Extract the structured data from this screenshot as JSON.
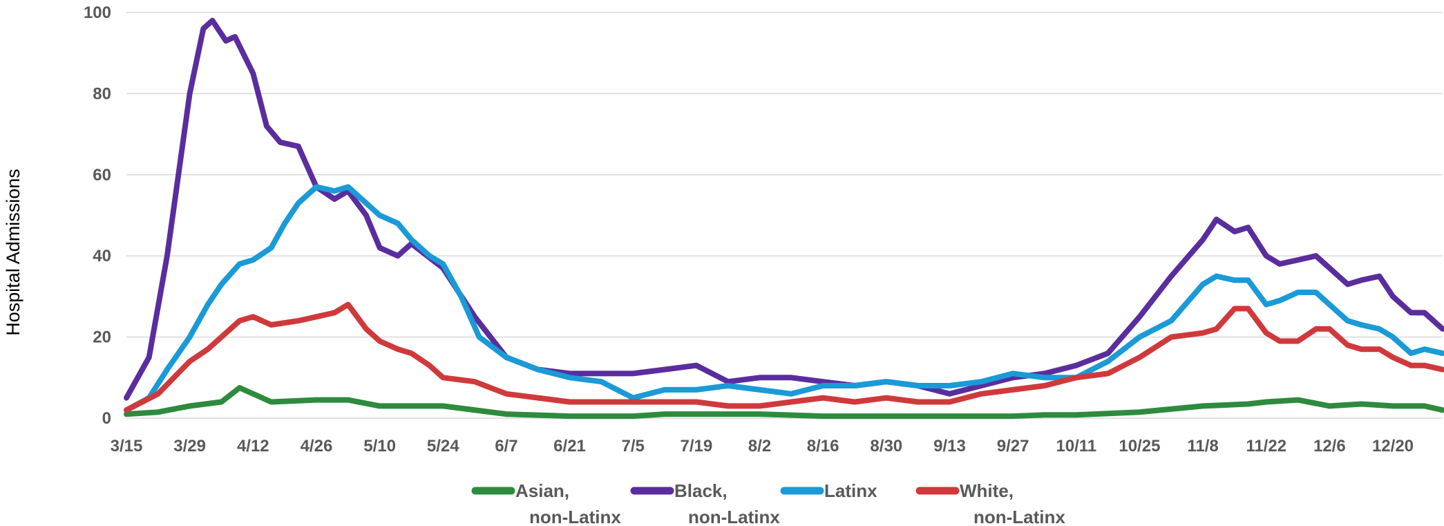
{
  "chart_data": {
    "type": "line",
    "title": "",
    "xlabel": "",
    "ylabel": "Hospital Admissions",
    "ylim": [
      0,
      100
    ],
    "yticks": [
      "0",
      "20",
      "40",
      "60",
      "80",
      "100"
    ],
    "x_tick_labels": [
      "3/15",
      "3/29",
      "4/12",
      "4/26",
      "5/10",
      "5/24",
      "6/7",
      "6/21",
      "7/5",
      "7/19",
      "8/2",
      "8/16",
      "8/30",
      "9/13",
      "9/27",
      "10/11",
      "10/25",
      "11/8",
      "11/22",
      "12/6",
      "12/20"
    ],
    "x_range": [
      "3/15",
      "12/31"
    ],
    "grid": "horizontal",
    "legend_position": "bottom",
    "series": [
      {
        "name": "Asian, non-Latinx",
        "legend_lines": [
          "Asian,",
          "non-Latinx"
        ],
        "color": "#2e8b3e",
        "points": [
          [
            "3/15",
            1
          ],
          [
            "3/22",
            1.5
          ],
          [
            "3/29",
            3
          ],
          [
            "4/5",
            4
          ],
          [
            "4/9",
            7.5
          ],
          [
            "4/16",
            4
          ],
          [
            "4/26",
            4.5
          ],
          [
            "5/3",
            4.5
          ],
          [
            "5/10",
            3
          ],
          [
            "5/24",
            3
          ],
          [
            "6/7",
            1
          ],
          [
            "6/21",
            0.5
          ],
          [
            "7/5",
            0.5
          ],
          [
            "7/12",
            1
          ],
          [
            "7/19",
            1
          ],
          [
            "8/2",
            1
          ],
          [
            "8/16",
            0.5
          ],
          [
            "9/13",
            0.5
          ],
          [
            "9/27",
            0.5
          ],
          [
            "10/4",
            0.8
          ],
          [
            "10/11",
            0.8
          ],
          [
            "10/25",
            1.5
          ],
          [
            "11/8",
            3
          ],
          [
            "11/18",
            3.5
          ],
          [
            "11/22",
            4
          ],
          [
            "11/29",
            4.5
          ],
          [
            "12/6",
            3
          ],
          [
            "12/13",
            3.5
          ],
          [
            "12/20",
            3
          ],
          [
            "12/27",
            3
          ],
          [
            "12/31",
            2
          ]
        ]
      },
      {
        "name": "Black, non-Latinx",
        "legend_lines": [
          "Black,",
          "non-Latinx"
        ],
        "color": "#5a2d9e",
        "points": [
          [
            "3/15",
            5
          ],
          [
            "3/20",
            15
          ],
          [
            "3/24",
            40
          ],
          [
            "3/29",
            80
          ],
          [
            "4/1",
            96
          ],
          [
            "4/3",
            98
          ],
          [
            "4/6",
            93
          ],
          [
            "4/8",
            94
          ],
          [
            "4/12",
            85
          ],
          [
            "4/15",
            72
          ],
          [
            "4/18",
            68
          ],
          [
            "4/22",
            67
          ],
          [
            "4/26",
            57
          ],
          [
            "4/30",
            54
          ],
          [
            "5/3",
            56
          ],
          [
            "5/7",
            50
          ],
          [
            "5/10",
            42
          ],
          [
            "5/14",
            40
          ],
          [
            "5/17",
            43
          ],
          [
            "5/24",
            37
          ],
          [
            "5/31",
            25
          ],
          [
            "6/7",
            15
          ],
          [
            "6/14",
            12
          ],
          [
            "6/21",
            11
          ],
          [
            "7/5",
            11
          ],
          [
            "7/12",
            12
          ],
          [
            "7/19",
            13
          ],
          [
            "7/26",
            9
          ],
          [
            "8/2",
            10
          ],
          [
            "8/9",
            10
          ],
          [
            "8/16",
            9
          ],
          [
            "8/23",
            8
          ],
          [
            "8/30",
            9
          ],
          [
            "9/6",
            8
          ],
          [
            "9/13",
            6
          ],
          [
            "9/20",
            8
          ],
          [
            "9/27",
            10
          ],
          [
            "10/4",
            11
          ],
          [
            "10/11",
            13
          ],
          [
            "10/18",
            16
          ],
          [
            "10/25",
            25
          ],
          [
            "11/1",
            35
          ],
          [
            "11/8",
            44
          ],
          [
            "11/11",
            49
          ],
          [
            "11/15",
            46
          ],
          [
            "11/18",
            47
          ],
          [
            "11/22",
            40
          ],
          [
            "11/25",
            38
          ],
          [
            "11/29",
            39
          ],
          [
            "12/3",
            40
          ],
          [
            "12/6",
            37
          ],
          [
            "12/10",
            33
          ],
          [
            "12/13",
            34
          ],
          [
            "12/17",
            35
          ],
          [
            "12/20",
            30
          ],
          [
            "12/24",
            26
          ],
          [
            "12/27",
            26
          ],
          [
            "12/31",
            22
          ]
        ]
      },
      {
        "name": "Latinx",
        "legend_lines": [
          "Latinx"
        ],
        "color": "#1a9ad6",
        "points": [
          [
            "3/15",
            2
          ],
          [
            "3/20",
            5
          ],
          [
            "3/24",
            12
          ],
          [
            "3/29",
            20
          ],
          [
            "4/2",
            28
          ],
          [
            "4/5",
            33
          ],
          [
            "4/9",
            38
          ],
          [
            "4/12",
            39
          ],
          [
            "4/16",
            42
          ],
          [
            "4/19",
            48
          ],
          [
            "4/22",
            53
          ],
          [
            "4/26",
            57
          ],
          [
            "4/30",
            56
          ],
          [
            "5/3",
            57
          ],
          [
            "5/7",
            53
          ],
          [
            "5/10",
            50
          ],
          [
            "5/14",
            48
          ],
          [
            "5/17",
            44
          ],
          [
            "5/21",
            40
          ],
          [
            "5/24",
            38
          ],
          [
            "5/28",
            30
          ],
          [
            "6/1",
            20
          ],
          [
            "6/7",
            15
          ],
          [
            "6/14",
            12
          ],
          [
            "6/21",
            10
          ],
          [
            "6/28",
            9
          ],
          [
            "7/5",
            5
          ],
          [
            "7/12",
            7
          ],
          [
            "7/19",
            7
          ],
          [
            "7/26",
            8
          ],
          [
            "8/2",
            7
          ],
          [
            "8/9",
            6
          ],
          [
            "8/16",
            8
          ],
          [
            "8/23",
            8
          ],
          [
            "8/30",
            9
          ],
          [
            "9/6",
            8
          ],
          [
            "9/13",
            8
          ],
          [
            "9/20",
            9
          ],
          [
            "9/27",
            11
          ],
          [
            "10/4",
            10
          ],
          [
            "10/11",
            10
          ],
          [
            "10/18",
            14
          ],
          [
            "10/25",
            20
          ],
          [
            "11/1",
            24
          ],
          [
            "11/8",
            33
          ],
          [
            "11/11",
            35
          ],
          [
            "11/15",
            34
          ],
          [
            "11/18",
            34
          ],
          [
            "11/22",
            28
          ],
          [
            "11/25",
            29
          ],
          [
            "11/29",
            31
          ],
          [
            "12/3",
            31
          ],
          [
            "12/6",
            28
          ],
          [
            "12/10",
            24
          ],
          [
            "12/13",
            23
          ],
          [
            "12/17",
            22
          ],
          [
            "12/20",
            20
          ],
          [
            "12/24",
            16
          ],
          [
            "12/27",
            17
          ],
          [
            "12/31",
            16
          ]
        ]
      },
      {
        "name": "White, non-Latinx",
        "legend_lines": [
          "White,",
          "non-Latinx"
        ],
        "color": "#d0393c",
        "points": [
          [
            "3/15",
            2
          ],
          [
            "3/22",
            6
          ],
          [
            "3/29",
            14
          ],
          [
            "4/2",
            17
          ],
          [
            "4/9",
            24
          ],
          [
            "4/12",
            25
          ],
          [
            "4/16",
            23
          ],
          [
            "4/22",
            24
          ],
          [
            "4/26",
            25
          ],
          [
            "4/30",
            26
          ],
          [
            "5/3",
            28
          ],
          [
            "5/7",
            22
          ],
          [
            "5/10",
            19
          ],
          [
            "5/14",
            17
          ],
          [
            "5/17",
            16
          ],
          [
            "5/21",
            13
          ],
          [
            "5/24",
            10
          ],
          [
            "5/31",
            9
          ],
          [
            "6/7",
            6
          ],
          [
            "6/14",
            5
          ],
          [
            "6/21",
            4
          ],
          [
            "6/28",
            4
          ],
          [
            "7/5",
            4
          ],
          [
            "7/12",
            4
          ],
          [
            "7/19",
            4
          ],
          [
            "7/26",
            3
          ],
          [
            "8/2",
            3
          ],
          [
            "8/9",
            4
          ],
          [
            "8/16",
            5
          ],
          [
            "8/23",
            4
          ],
          [
            "8/30",
            5
          ],
          [
            "9/6",
            4
          ],
          [
            "9/13",
            4
          ],
          [
            "9/20",
            6
          ],
          [
            "9/27",
            7
          ],
          [
            "10/4",
            8
          ],
          [
            "10/11",
            10
          ],
          [
            "10/18",
            11
          ],
          [
            "10/25",
            15
          ],
          [
            "11/1",
            20
          ],
          [
            "11/8",
            21
          ],
          [
            "11/11",
            22
          ],
          [
            "11/15",
            27
          ],
          [
            "11/18",
            27
          ],
          [
            "11/22",
            21
          ],
          [
            "11/25",
            19
          ],
          [
            "11/29",
            19
          ],
          [
            "12/3",
            22
          ],
          [
            "12/6",
            22
          ],
          [
            "12/10",
            18
          ],
          [
            "12/13",
            17
          ],
          [
            "12/17",
            17
          ],
          [
            "12/20",
            15
          ],
          [
            "12/24",
            13
          ],
          [
            "12/27",
            13
          ],
          [
            "12/31",
            12
          ]
        ]
      }
    ]
  }
}
